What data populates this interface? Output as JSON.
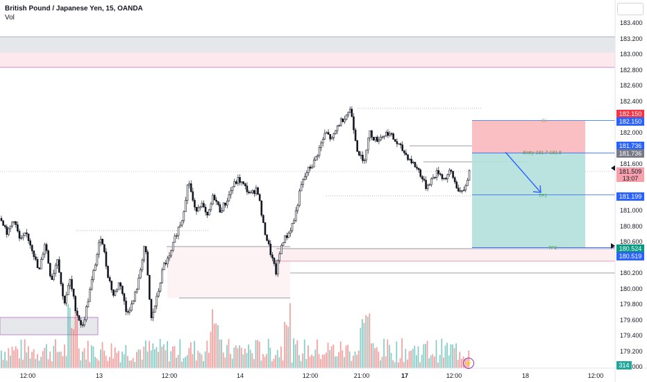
{
  "header": {
    "title": "British Pound / Japanese Yen, 15, OANDA",
    "indicator": "Vol"
  },
  "axis": {
    "y_labels": [
      "183.400",
      "183.200",
      "183.000",
      "182.800",
      "182.600",
      "182.400",
      "182.200",
      "182.000",
      "181.800",
      "181.600",
      "181.400",
      "181.200",
      "181.000",
      "180.800",
      "180.600",
      "180.400",
      "180.200",
      "180.000",
      "179.800",
      "179.600",
      "179.400",
      "179.200",
      "179.000"
    ],
    "x_labels": [
      "12:00",
      "13",
      "12:00",
      "14",
      "12:00",
      "21:00",
      "17",
      "12:00",
      "18",
      "12:00"
    ],
    "x_bold": [
      "17"
    ]
  },
  "trade": {
    "sl_label": "SL",
    "entry_label": "Entry 181.7-181.5",
    "tp1_label": "TP1",
    "tp2_label": "TP2"
  },
  "tags": {
    "sl_red": "182.150",
    "sl_blue": "182.150",
    "entry_blue": "181.736",
    "entry_gray": "181.736",
    "last": "181.509",
    "countdown": "13:07",
    "tp1": "181.199",
    "tp2_green": "180.524",
    "tp2_blue": "180.519",
    "volume": "314"
  },
  "colors": {
    "up": "#131722",
    "down": "#131722",
    "vol_up": "#26a69a",
    "vol_down": "#ef5350",
    "tp_zone": "#b2dfdb",
    "sl_zone": "#f8b8bd"
  },
  "chart_data": {
    "type": "candlestick",
    "symbol": "GBPJPY",
    "ylim": [
      179.0,
      183.4
    ],
    "levels": {
      "sl": 182.15,
      "entry_top": 181.736,
      "entry_bottom": 181.5,
      "tp1": 181.199,
      "tp2": 180.524,
      "last": 181.509
    },
    "path": [
      180.9,
      180.7,
      180.9,
      180.6,
      180.7,
      180.5,
      180.2,
      180.6,
      180.1,
      180.4,
      179.8,
      180.1,
      179.7,
      179.5,
      179.9,
      180.3,
      180.7,
      180.2,
      179.9,
      180.1,
      179.7,
      179.8,
      180.1,
      180.6,
      179.6,
      179.9,
      180.3,
      180.4,
      180.7,
      180.9,
      181.4,
      181.0,
      181.1,
      180.9,
      181.2,
      181.0,
      181.1,
      181.3,
      181.4,
      181.3,
      181.2,
      181.3,
      180.8,
      180.5,
      180.2,
      180.6,
      180.7,
      180.9,
      181.3,
      181.5,
      181.6,
      181.8,
      182.0,
      181.9,
      182.1,
      182.2,
      182.3,
      181.8,
      181.6,
      182.0,
      181.9,
      181.95,
      182.0,
      181.9,
      181.8,
      181.7,
      181.6,
      181.5,
      181.3,
      181.4,
      181.5,
      181.4,
      181.5,
      181.3,
      181.2,
      181.5
    ],
    "volume_scale": [
      0,
      400
    ]
  }
}
